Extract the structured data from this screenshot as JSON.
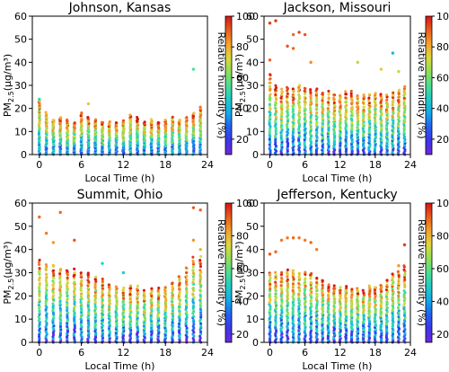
{
  "chart_data": [
    {
      "type": "scatter",
      "title": "Johnson, Kansas",
      "xlabel": "Local Time (h)",
      "ylabel_main": "PM",
      "ylabel_sub": "2.5",
      "ylabel_unit": "(μg/m³)",
      "xlim": [
        -1,
        24
      ],
      "ylim": [
        0,
        60
      ],
      "xticks": [
        "0",
        "6",
        "12",
        "18",
        "24"
      ],
      "yticks": [
        "0",
        "10",
        "20",
        "30",
        "40",
        "50",
        "60"
      ],
      "colorbar": {
        "label": "Relative humidity (%)",
        "range": [
          10,
          100
        ],
        "ticks": [
          "20",
          "40",
          "60",
          "80",
          "100"
        ]
      },
      "hourly_max": [
        23,
        18,
        15,
        16,
        15,
        14,
        18,
        16,
        15,
        14,
        14,
        14,
        15,
        17,
        16,
        14,
        15,
        14,
        15,
        16,
        15,
        16,
        18,
        21
      ],
      "outliers": [
        {
          "x": 0,
          "y": 24,
          "rh": 50
        },
        {
          "x": 22,
          "y": 37,
          "rh": 55
        },
        {
          "x": 7,
          "y": 22,
          "rh": 75
        }
      ],
      "description": "Hourly PM2.5 concentrations colored by relative humidity; values mostly 0-20 μg/m³"
    },
    {
      "type": "scatter",
      "title": "Jackson, Missouri",
      "xlabel": "Local Time (h)",
      "ylabel_main": "PM",
      "ylabel_sub": "2.5",
      "ylabel_unit": "(μg/m³)",
      "xlim": [
        -1,
        24
      ],
      "ylim": [
        0,
        60
      ],
      "xticks": [
        "0",
        "6",
        "12",
        "18",
        "24"
      ],
      "yticks": [
        "0",
        "10",
        "20",
        "30",
        "40",
        "50",
        "60"
      ],
      "colorbar": {
        "label": "Relative humidity (%)",
        "range": [
          10,
          100
        ],
        "ticks": [
          "20",
          "40",
          "60",
          "80",
          "100"
        ]
      },
      "hourly_max": [
        35,
        30,
        28,
        29,
        29,
        30,
        29,
        28,
        28,
        27,
        27,
        26,
        26,
        27,
        27,
        26,
        26,
        26,
        27,
        26,
        26,
        27,
        28,
        29
      ],
      "outliers": [
        {
          "x": 0,
          "y": 57,
          "rh": 95
        },
        {
          "x": 1,
          "y": 58,
          "rh": 95
        },
        {
          "x": 3,
          "y": 47,
          "rh": 92
        },
        {
          "x": 4,
          "y": 46,
          "rh": 90
        },
        {
          "x": 4,
          "y": 52,
          "rh": 90
        },
        {
          "x": 5,
          "y": 53,
          "rh": 93
        },
        {
          "x": 6,
          "y": 52,
          "rh": 92
        },
        {
          "x": 7,
          "y": 40,
          "rh": 85
        },
        {
          "x": 15,
          "y": 40,
          "rh": 70
        },
        {
          "x": 19,
          "y": 37,
          "rh": 75
        },
        {
          "x": 21,
          "y": 44,
          "rh": 40
        },
        {
          "x": 22,
          "y": 36,
          "rh": 70
        },
        {
          "x": 0,
          "y": 41,
          "rh": 90
        }
      ],
      "description": "Hourly PM2.5 concentrations colored by relative humidity"
    },
    {
      "type": "scatter",
      "title": "Summit, Ohio",
      "xlabel": "Local Time (h)",
      "ylabel_main": "PM",
      "ylabel_sub": "2.5",
      "ylabel_unit": "(μg/m³)",
      "xlim": [
        -1,
        24
      ],
      "ylim": [
        0,
        60
      ],
      "xticks": [
        "0",
        "6",
        "12",
        "18",
        "24"
      ],
      "yticks": [
        "0",
        "10",
        "20",
        "30",
        "40",
        "50",
        "60"
      ],
      "colorbar": {
        "label": "Relative humidity (%)",
        "range": [
          15,
          100
        ],
        "ticks": [
          "20",
          "40",
          "60",
          "80",
          "100"
        ]
      },
      "hourly_max": [
        35,
        34,
        33,
        32,
        31,
        31,
        30,
        30,
        28,
        27,
        25,
        24,
        23,
        24,
        24,
        22,
        23,
        23,
        24,
        26,
        28,
        32,
        36,
        37
      ],
      "outliers": [
        {
          "x": 0,
          "y": 54,
          "rh": 90
        },
        {
          "x": 1,
          "y": 47,
          "rh": 88
        },
        {
          "x": 3,
          "y": 56,
          "rh": 90
        },
        {
          "x": 2,
          "y": 43,
          "rh": 85
        },
        {
          "x": 5,
          "y": 44,
          "rh": 92
        },
        {
          "x": 9,
          "y": 34,
          "rh": 50
        },
        {
          "x": 22,
          "y": 58,
          "rh": 92
        },
        {
          "x": 23,
          "y": 57,
          "rh": 90
        },
        {
          "x": 22,
          "y": 44,
          "rh": 85
        },
        {
          "x": 23,
          "y": 40,
          "rh": 80
        },
        {
          "x": 12,
          "y": 30,
          "rh": 50
        }
      ],
      "description": "Hourly PM2.5 concentrations colored by relative humidity"
    },
    {
      "type": "scatter",
      "title": "Jefferson, Kentucky",
      "xlabel": "Local Time (h)",
      "ylabel_main": "PM",
      "ylabel_sub": "2.5",
      "ylabel_unit": "(μg/m³)",
      "xlim": [
        -1,
        24
      ],
      "ylim": [
        0,
        60
      ],
      "xticks": [
        "0",
        "6",
        "12",
        "18",
        "24"
      ],
      "yticks": [
        "0",
        "10",
        "20",
        "30",
        "40",
        "50",
        "60"
      ],
      "colorbar": {
        "label": "Relative humidity (%)",
        "range": [
          15,
          100
        ],
        "ticks": [
          "20",
          "40",
          "60",
          "80",
          "100"
        ]
      },
      "hourly_max": [
        30,
        30,
        30,
        31,
        31,
        30,
        30,
        30,
        28,
        27,
        25,
        24,
        24,
        24,
        23,
        23,
        22,
        24,
        24,
        25,
        27,
        30,
        30,
        33
      ],
      "outliers": [
        {
          "x": 0,
          "y": 38,
          "rh": 92
        },
        {
          "x": 1,
          "y": 39,
          "rh": 90
        },
        {
          "x": 2,
          "y": 44,
          "rh": 88
        },
        {
          "x": 3,
          "y": 45,
          "rh": 88
        },
        {
          "x": 4,
          "y": 45,
          "rh": 90
        },
        {
          "x": 5,
          "y": 45,
          "rh": 88
        },
        {
          "x": 6,
          "y": 44,
          "rh": 88
        },
        {
          "x": 7,
          "y": 43,
          "rh": 90
        },
        {
          "x": 8,
          "y": 40,
          "rh": 88
        },
        {
          "x": 23,
          "y": 42,
          "rh": 95
        },
        {
          "x": 22,
          "y": 33,
          "rh": 85
        }
      ],
      "description": "Hourly PM2.5 concentrations colored by relative humidity"
    }
  ]
}
